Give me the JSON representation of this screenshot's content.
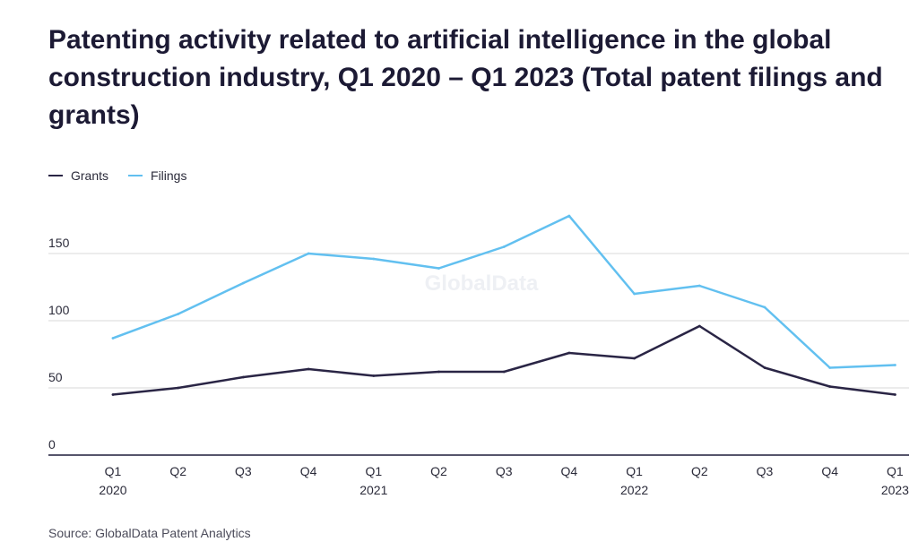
{
  "header": {
    "title": "Patenting activity related to artificial intelligence in the global construction industry, Q1 2020 – Q1 2023 (Total patent filings and grants)"
  },
  "footer": {
    "source": "Source: GlobalData Patent Analytics"
  },
  "watermark": "GlobalData",
  "colors": {
    "grants": "#2a2545",
    "filings": "#62c0f0",
    "grid": "#d9d9d9",
    "axis": "#1f1d3a"
  },
  "chart_data": {
    "type": "line",
    "title": "Patenting activity related to artificial intelligence in the global construction industry, Q1 2020 – Q1 2023 (Total patent filings and grants)",
    "xlabel": "",
    "ylabel": "",
    "categories": [
      {
        "q": "Q1",
        "year": "2020"
      },
      {
        "q": "Q2",
        "year": ""
      },
      {
        "q": "Q3",
        "year": ""
      },
      {
        "q": "Q4",
        "year": ""
      },
      {
        "q": "Q1",
        "year": "2021"
      },
      {
        "q": "Q2",
        "year": ""
      },
      {
        "q": "Q3",
        "year": ""
      },
      {
        "q": "Q4",
        "year": ""
      },
      {
        "q": "Q1",
        "year": "2022"
      },
      {
        "q": "Q2",
        "year": ""
      },
      {
        "q": "Q3",
        "year": ""
      },
      {
        "q": "Q4",
        "year": ""
      },
      {
        "q": "Q1",
        "year": "2023"
      }
    ],
    "yticks": [
      0,
      50,
      100,
      150
    ],
    "ylim": [
      0,
      180
    ],
    "grid": true,
    "legend_position": "top-left",
    "series": [
      {
        "name": "Grants",
        "color": "#2a2545",
        "values": [
          45,
          50,
          58,
          64,
          59,
          62,
          62,
          76,
          72,
          96,
          65,
          51,
          45
        ]
      },
      {
        "name": "Filings",
        "color": "#62c0f0",
        "values": [
          87,
          105,
          128,
          150,
          146,
          139,
          155,
          178,
          120,
          126,
          110,
          65,
          67
        ]
      }
    ]
  }
}
